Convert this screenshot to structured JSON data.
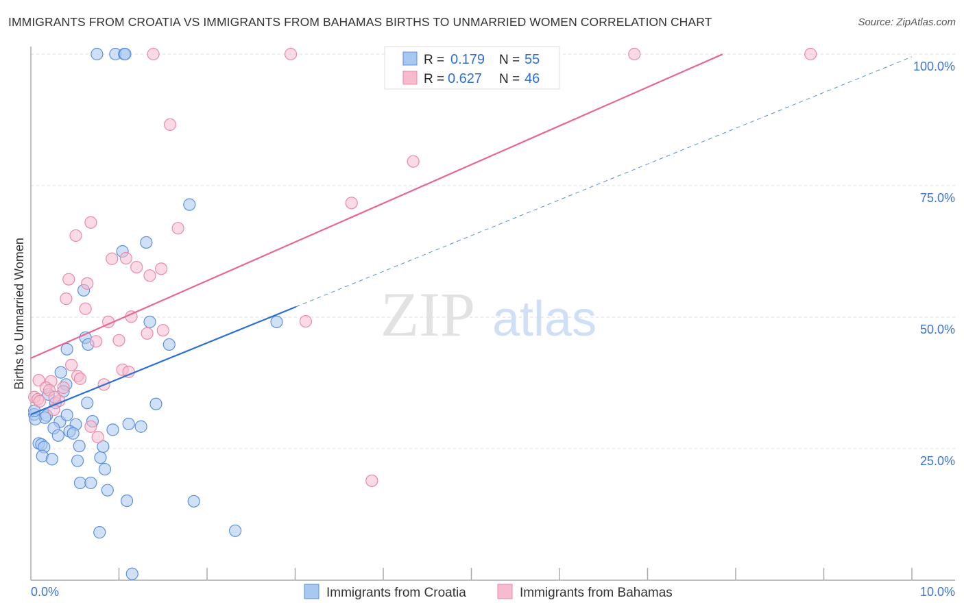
{
  "title": "IMMIGRANTS FROM CROATIA VS IMMIGRANTS FROM BAHAMAS BIRTHS TO UNMARRIED WOMEN CORRELATION CHART",
  "source": "Source: ZipAtlas.com",
  "watermark": "ZIPatlas",
  "colors": {
    "blue_fill": "#a9c8f0",
    "blue_stroke": "#5b8fe0",
    "blue_line": "#2a6fd6",
    "pink_fill": "#f6bccd",
    "pink_stroke": "#e88aa8",
    "pink_line": "#e8668f",
    "accent_text": "#3b73d0"
  },
  "legend_stats": [
    {
      "r_label": "R =",
      "r": "0.179",
      "n_label": "N =",
      "n": "55"
    },
    {
      "r_label": "R =",
      "r": "0.627",
      "n_label": "N =",
      "n": "46"
    }
  ],
  "chart_data": {
    "type": "scatter",
    "title": "IMMIGRANTS FROM CROATIA VS IMMIGRANTS FROM BAHAMAS BIRTHS TO UNMARRIED WOMEN CORRELATION CHART",
    "xlabel": "",
    "ylabel": "Births to Unmarried Women",
    "xlim": [
      0,
      10
    ],
    "ylim": [
      0,
      100
    ],
    "x_tick_labels": [
      "0.0%",
      "10.0%"
    ],
    "y_tick_labels": [
      "25.0%",
      "50.0%",
      "75.0%",
      "100.0%"
    ],
    "y_ticks": [
      25,
      50,
      75,
      100
    ],
    "grid": true,
    "legend_placement": "bottom-center",
    "series": [
      {
        "name": "Immigrants from Croatia",
        "color": "blue",
        "trend": {
          "x0": 0,
          "y0": 31.5,
          "x_solid_end": 3.01,
          "slope": 6.8,
          "dashed_to": 10
        },
        "points": [
          [
            0.75,
            100
          ],
          [
            0.96,
            100
          ],
          [
            1.06,
            100
          ],
          [
            1.07,
            100
          ],
          [
            1.8,
            71.4
          ],
          [
            1.31,
            64.2
          ],
          [
            1.04,
            62.5
          ],
          [
            0.6,
            55.1
          ],
          [
            1.35,
            49.1
          ],
          [
            2.79,
            49.1
          ],
          [
            0.62,
            46.1
          ],
          [
            0.65,
            44.8
          ],
          [
            1.57,
            44.8
          ],
          [
            0.41,
            43.9
          ],
          [
            0.34,
            39.5
          ],
          [
            0.4,
            37.2
          ],
          [
            0.37,
            35.9
          ],
          [
            0.2,
            35.3
          ],
          [
            0.28,
            33.7
          ],
          [
            1.42,
            33.5
          ],
          [
            0.64,
            33.7
          ],
          [
            0.04,
            31.5
          ],
          [
            0.18,
            31.3
          ],
          [
            0.16,
            30.9
          ],
          [
            0.33,
            30.1
          ],
          [
            0.7,
            30.2
          ],
          [
            0.51,
            29.6
          ],
          [
            1.11,
            29.7
          ],
          [
            1.25,
            29.2
          ],
          [
            0.93,
            28.6
          ],
          [
            0.26,
            28.9
          ],
          [
            0.44,
            28.3
          ],
          [
            0.48,
            27.9
          ],
          [
            0.31,
            27.5
          ],
          [
            0.09,
            26.0
          ],
          [
            0.12,
            25.8
          ],
          [
            0.15,
            25.3
          ],
          [
            0.55,
            25.5
          ],
          [
            0.82,
            25.4
          ],
          [
            0.13,
            23.6
          ],
          [
            0.24,
            23.0
          ],
          [
            0.53,
            22.7
          ],
          [
            0.79,
            23.3
          ],
          [
            0.84,
            21.1
          ],
          [
            0.56,
            18.5
          ],
          [
            0.68,
            18.5
          ],
          [
            0.87,
            17.1
          ],
          [
            1.09,
            15.1
          ],
          [
            1.85,
            15.0
          ],
          [
            0.78,
            9.1
          ],
          [
            2.32,
            9.4
          ],
          [
            1.15,
            1.2
          ],
          [
            0.05,
            30.6
          ],
          [
            0.04,
            32.2
          ],
          [
            0.41,
            31.4
          ]
        ]
      },
      {
        "name": "Immigrants from Bahamas",
        "color": "pink",
        "trend": {
          "x0": 0,
          "y0": 42.2,
          "slope": 7.36,
          "x_end": 7.85
        },
        "points": [
          [
            1.39,
            100
          ],
          [
            2.95,
            100
          ],
          [
            6.85,
            100
          ],
          [
            8.85,
            100
          ],
          [
            1.58,
            86.6
          ],
          [
            4.34,
            79.6
          ],
          [
            3.64,
            71.7
          ],
          [
            0.68,
            68.0
          ],
          [
            1.67,
            66.9
          ],
          [
            0.51,
            65.5
          ],
          [
            0.92,
            61.1
          ],
          [
            1.08,
            61.2
          ],
          [
            1.2,
            59.5
          ],
          [
            1.48,
            59.2
          ],
          [
            1.35,
            57.9
          ],
          [
            0.43,
            57.2
          ],
          [
            0.64,
            56.4
          ],
          [
            0.4,
            53.5
          ],
          [
            0.62,
            51.6
          ],
          [
            0.88,
            49.1
          ],
          [
            1.14,
            50.1
          ],
          [
            3.12,
            49.2
          ],
          [
            1.32,
            46.9
          ],
          [
            1.5,
            47.5
          ],
          [
            0.74,
            45.4
          ],
          [
            1.0,
            45.6
          ],
          [
            0.46,
            40.9
          ],
          [
            1.04,
            40.0
          ],
          [
            1.11,
            39.6
          ],
          [
            0.53,
            38.8
          ],
          [
            0.56,
            38.3
          ],
          [
            0.09,
            38.0
          ],
          [
            0.23,
            37.8
          ],
          [
            0.83,
            37.2
          ],
          [
            0.37,
            36.6
          ],
          [
            0.17,
            36.6
          ],
          [
            0.21,
            36.1
          ],
          [
            0.32,
            34.1
          ],
          [
            0.27,
            34.8
          ],
          [
            0.04,
            34.8
          ],
          [
            0.08,
            34.4
          ],
          [
            0.1,
            34.0
          ],
          [
            0.26,
            32.4
          ],
          [
            0.68,
            29.2
          ],
          [
            0.76,
            27.2
          ],
          [
            3.87,
            18.9
          ]
        ]
      }
    ]
  }
}
